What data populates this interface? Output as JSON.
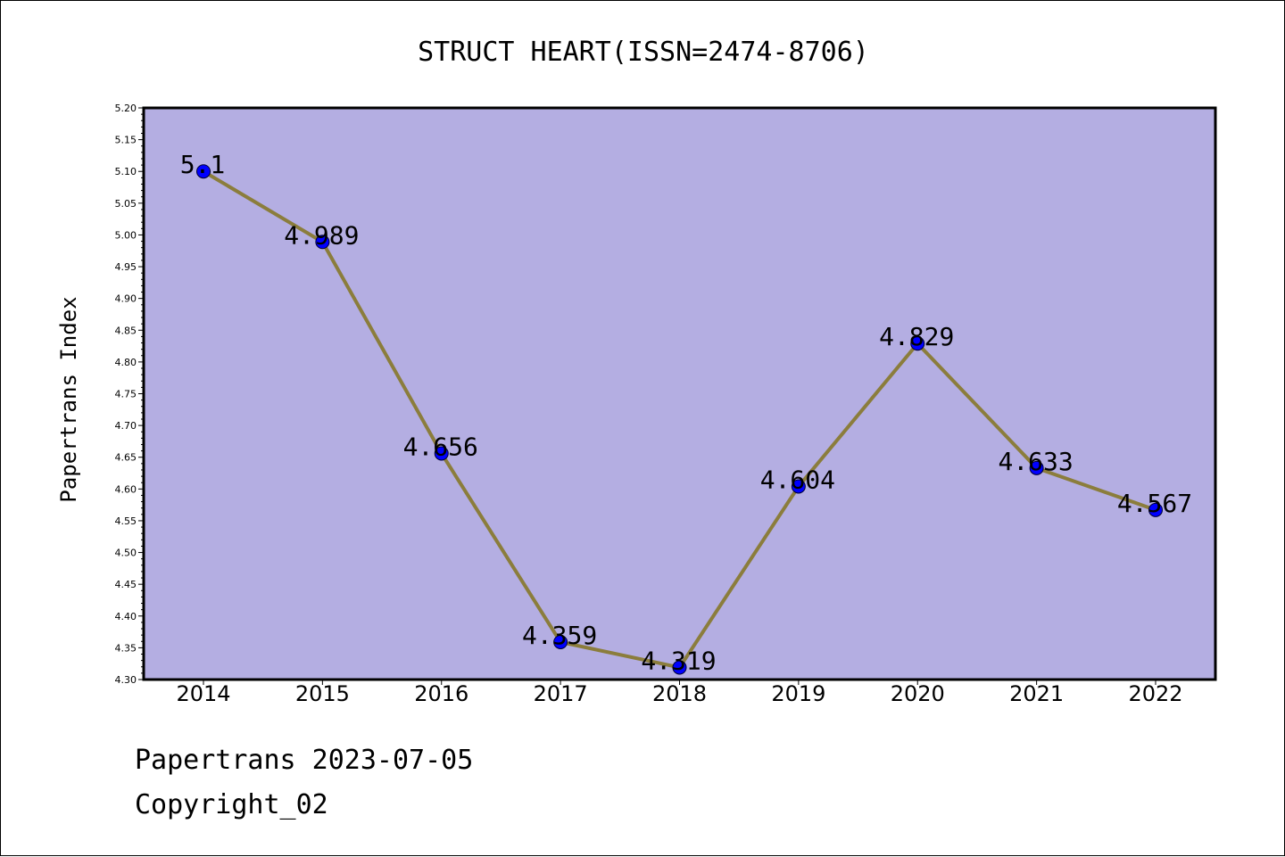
{
  "chart_data": {
    "type": "line",
    "title": "STRUCT HEART(ISSN=2474-8706)",
    "ylabel": "Papertrans Index",
    "xlabel": "",
    "categories": [
      "2014",
      "2015",
      "2016",
      "2017",
      "2018",
      "2019",
      "2020",
      "2021",
      "2022"
    ],
    "values": [
      5.1,
      4.989,
      4.656,
      4.359,
      4.319,
      4.604,
      4.829,
      4.633,
      4.567
    ],
    "data_labels": [
      "5.1",
      "4.989",
      "4.656",
      "4.359",
      "4.319",
      "4.604",
      "4.829",
      "4.633",
      "4.567"
    ],
    "ylim": [
      4.3,
      5.2
    ],
    "yticks": [
      "4.30",
      "4.35",
      "4.40",
      "4.45",
      "4.50",
      "4.55",
      "4.60",
      "4.65",
      "4.70",
      "4.75",
      "4.80",
      "4.85",
      "4.90",
      "4.95",
      "5.00",
      "5.05",
      "5.10",
      "5.15",
      "5.20"
    ],
    "grid": false,
    "colors": {
      "plot_background": "#b4aee2",
      "line": "#8b7d3c",
      "marker": "#0000ff"
    }
  },
  "footer": {
    "date_line": "Papertrans 2023-07-05",
    "copyright": "Copyright_02"
  }
}
